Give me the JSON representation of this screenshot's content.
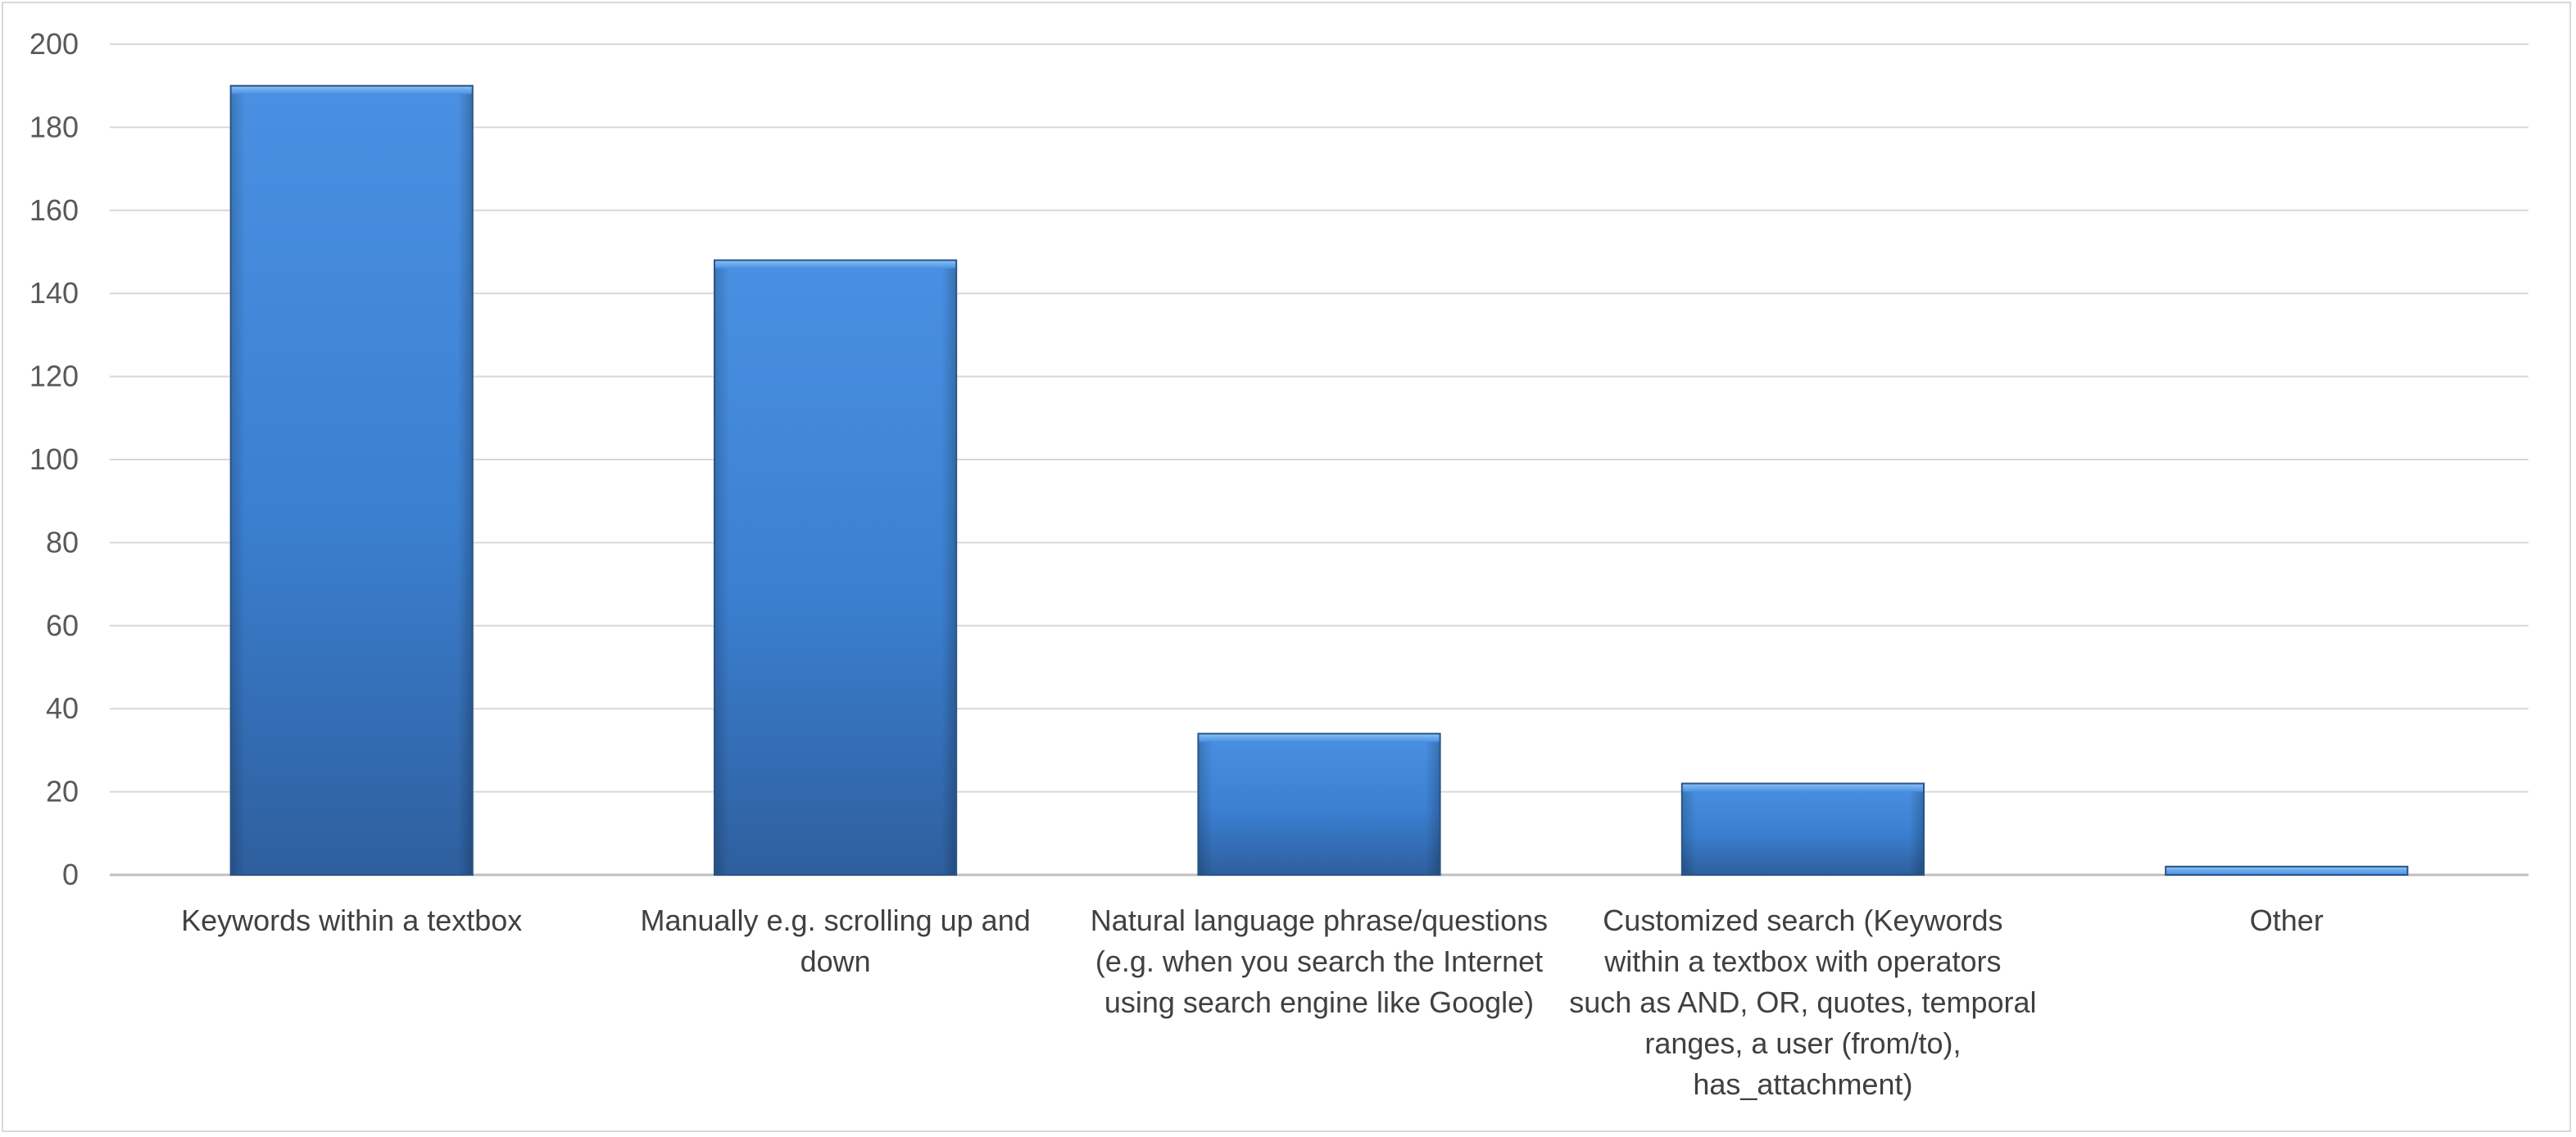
{
  "chart_data": {
    "type": "bar",
    "title": "",
    "xlabel": "",
    "ylabel": "",
    "categories": [
      "Keywords within a textbox",
      "Manually e.g. scrolling up and down",
      "Natural language phrase/questions (e.g. when you search the Internet using search engine like Google)",
      "Customized search (Keywords within a textbox with operators such as AND, OR, quotes, temporal ranges, a user (from/to), has_attachment)",
      "Other"
    ],
    "category_label_lines": [
      [
        "Keywords within a textbox"
      ],
      [
        "Manually e.g. scrolling up and",
        "down"
      ],
      [
        "Natural language phrase/questions",
        "(e.g. when you search the Internet",
        "using search engine like Google)"
      ],
      [
        "Customized search (Keywords",
        "within a textbox with operators",
        "such as AND, OR, quotes, temporal",
        "ranges, a user (from/to),",
        "has_attachment)"
      ],
      [
        "Other"
      ]
    ],
    "values": [
      190,
      148,
      34,
      22,
      2
    ],
    "ylim": [
      0,
      200
    ],
    "yticks": [
      0,
      20,
      40,
      60,
      80,
      100,
      120,
      140,
      160,
      180,
      200
    ],
    "grid": true,
    "legend": "none",
    "colors": {
      "bar_top": "#4a90e2",
      "bar_mid": "#3b7fd0",
      "bar_bottom": "#2e5f9e",
      "bar_edge": "#2a5585",
      "grid": "#d9d9d9",
      "axis": "#bfbfbf",
      "tick_text": "#595959",
      "label_text": "#404040"
    }
  }
}
